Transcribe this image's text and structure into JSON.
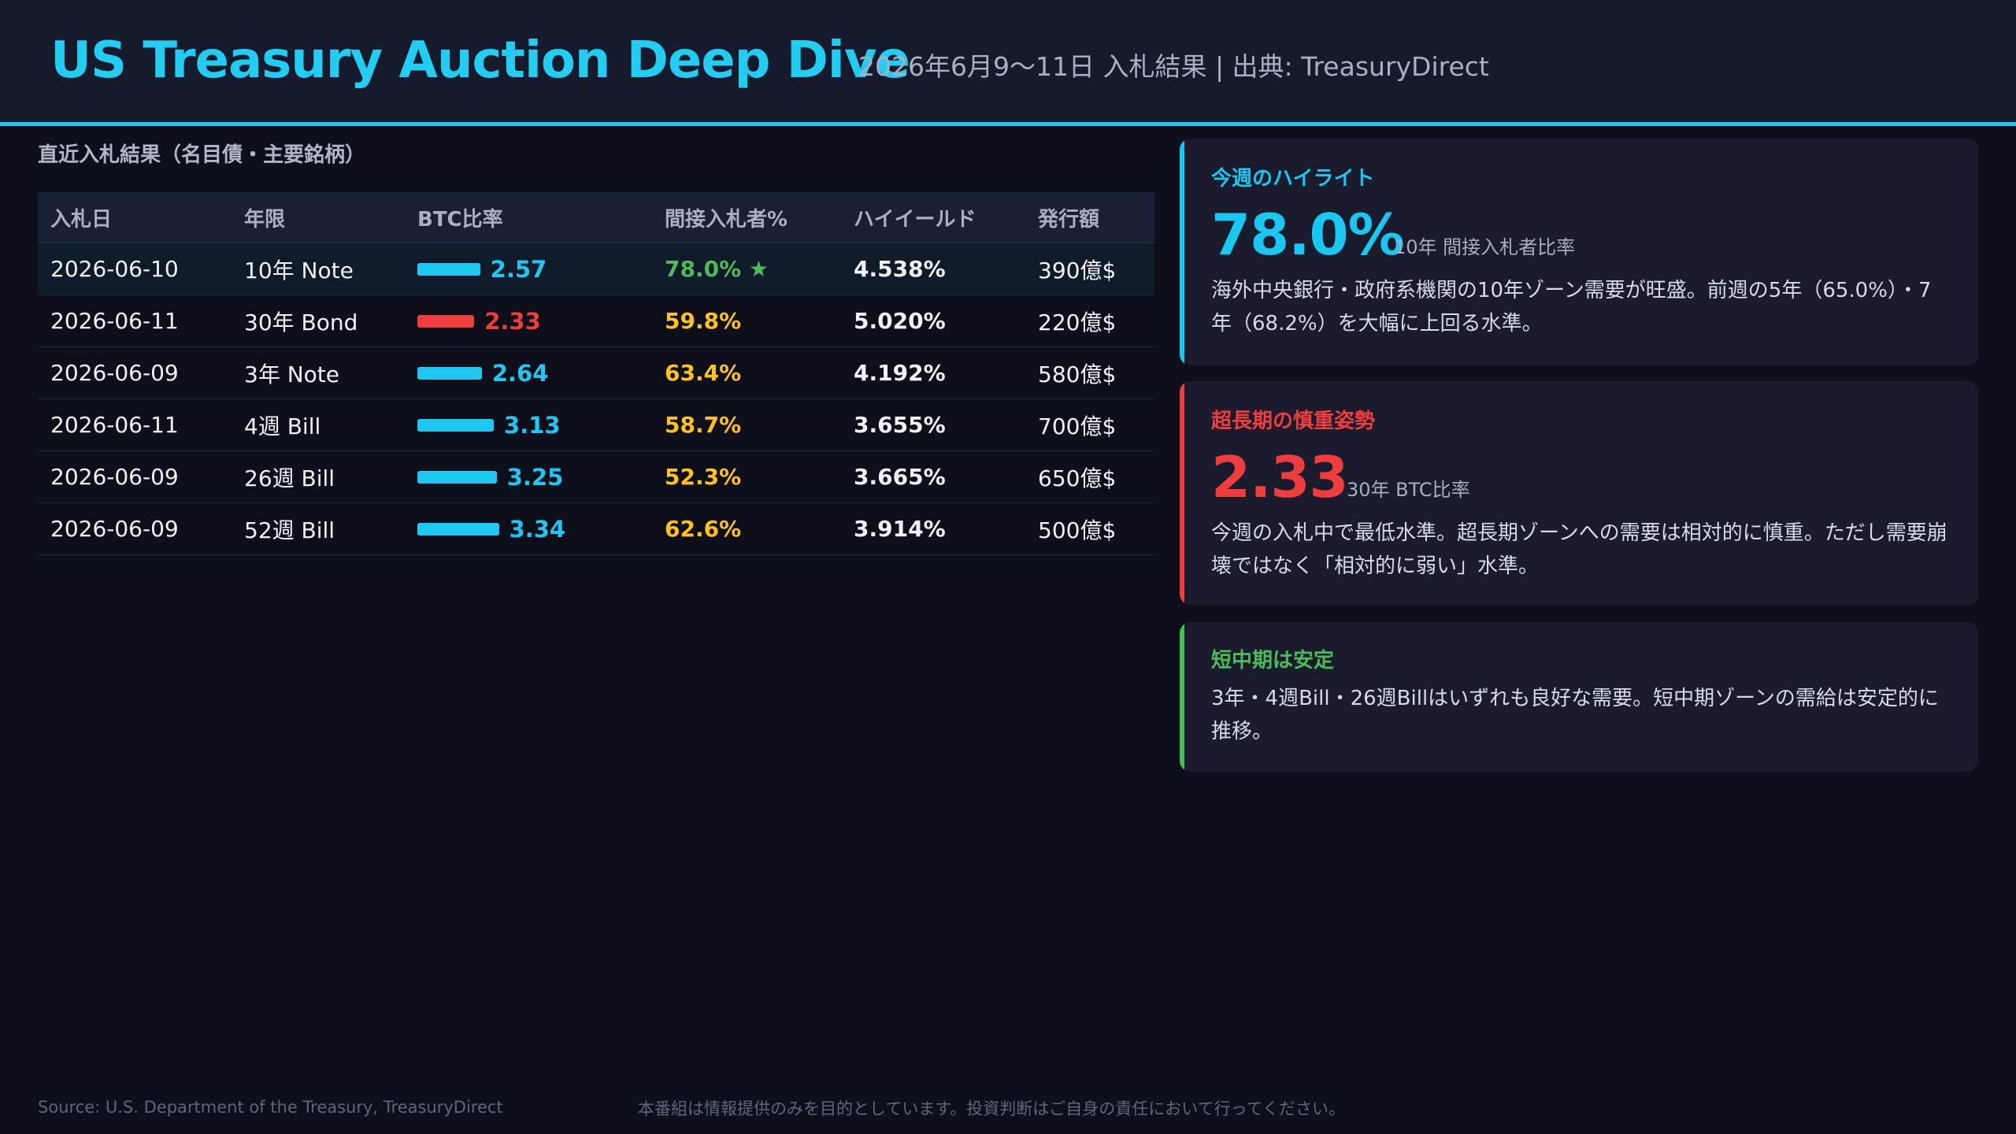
{
  "header": {
    "title": "US Treasury Auction Deep Dive",
    "subtitle": "2026年6月9〜11日 入札結果 | 出典: TreasuryDirect"
  },
  "section_title": "直近入札結果（名目債・主要銘柄）",
  "table": {
    "columns": [
      "入札日",
      "年限",
      "BTC比率",
      "間接入札者%",
      "ハイイールド",
      "発行額"
    ],
    "rows": [
      {
        "date": "2026-06-10",
        "tenor": "10年 Note",
        "btc": 2.57,
        "btc_label": "2.57",
        "indirect": "78.0% ★",
        "high_yield": "4.538%",
        "amount": "390億$",
        "btc_color": "#1ec8f0",
        "indirect_color": "#4cba57"
      },
      {
        "date": "2026-06-11",
        "tenor": "30年 Bond",
        "btc": 2.33,
        "btc_label": "2.33",
        "indirect": "59.8%",
        "high_yield": "5.020%",
        "amount": "220億$",
        "btc_color": "#ee3d3d",
        "indirect_color": "#ffc21a"
      },
      {
        "date": "2026-06-09",
        "tenor": "3年 Note",
        "btc": 2.64,
        "btc_label": "2.64",
        "indirect": "63.4%",
        "high_yield": "4.192%",
        "amount": "580億$",
        "btc_color": "#1ec8f0",
        "indirect_color": "#ffc21a"
      },
      {
        "date": "2026-06-11",
        "tenor": "4週 Bill",
        "btc": 3.13,
        "btc_label": "3.13",
        "indirect": "58.7%",
        "high_yield": "3.655%",
        "amount": "700億$",
        "btc_color": "#1ec8f0",
        "indirect_color": "#ffc21a"
      },
      {
        "date": "2026-06-09",
        "tenor": "26週 Bill",
        "btc": 3.25,
        "btc_label": "3.25",
        "indirect": "52.3%",
        "high_yield": "3.665%",
        "amount": "650億$",
        "btc_color": "#1ec8f0",
        "indirect_color": "#ffc21a"
      },
      {
        "date": "2026-06-09",
        "tenor": "52週 Bill",
        "btc": 3.34,
        "btc_label": "3.34",
        "indirect": "62.6%",
        "high_yield": "3.914%",
        "amount": "500億$",
        "btc_color": "#1ec8f0",
        "indirect_color": "#ffc21a"
      }
    ]
  },
  "cards": [
    {
      "title": "今週のハイライト",
      "big": "78.0%",
      "big_label": "10年 間接入札者比率",
      "body": "海外中央銀行・政府系機関の10年ゾーン需要が旺盛。前週の5年（65.0%）・7年（68.2%）を大幅に上回る水準。",
      "accent": "#19c8f0"
    },
    {
      "title": "超長期の慎重姿勢",
      "big": "2.33",
      "big_label": "30年 BTC比率",
      "body": "今週の入札中で最低水準。超長期ゾーンへの需要は相対的に慎重。ただし需要崩壊ではなく「相対的に弱い」水準。",
      "accent": "#ee3d3d"
    },
    {
      "title": "短中期は安定",
      "body": "3年・4週Bill・26週Billはいずれも良好な需要。短中期ゾーンの需給は安定的に推移。",
      "accent": "#4cba57"
    }
  ],
  "footer": {
    "source": "Source: U.S. Department of the Treasury, TreasuryDirect",
    "disclaimer": "本番組は情報提供のみを目的としています。投資判断はご自身の責任において行ってください。"
  }
}
